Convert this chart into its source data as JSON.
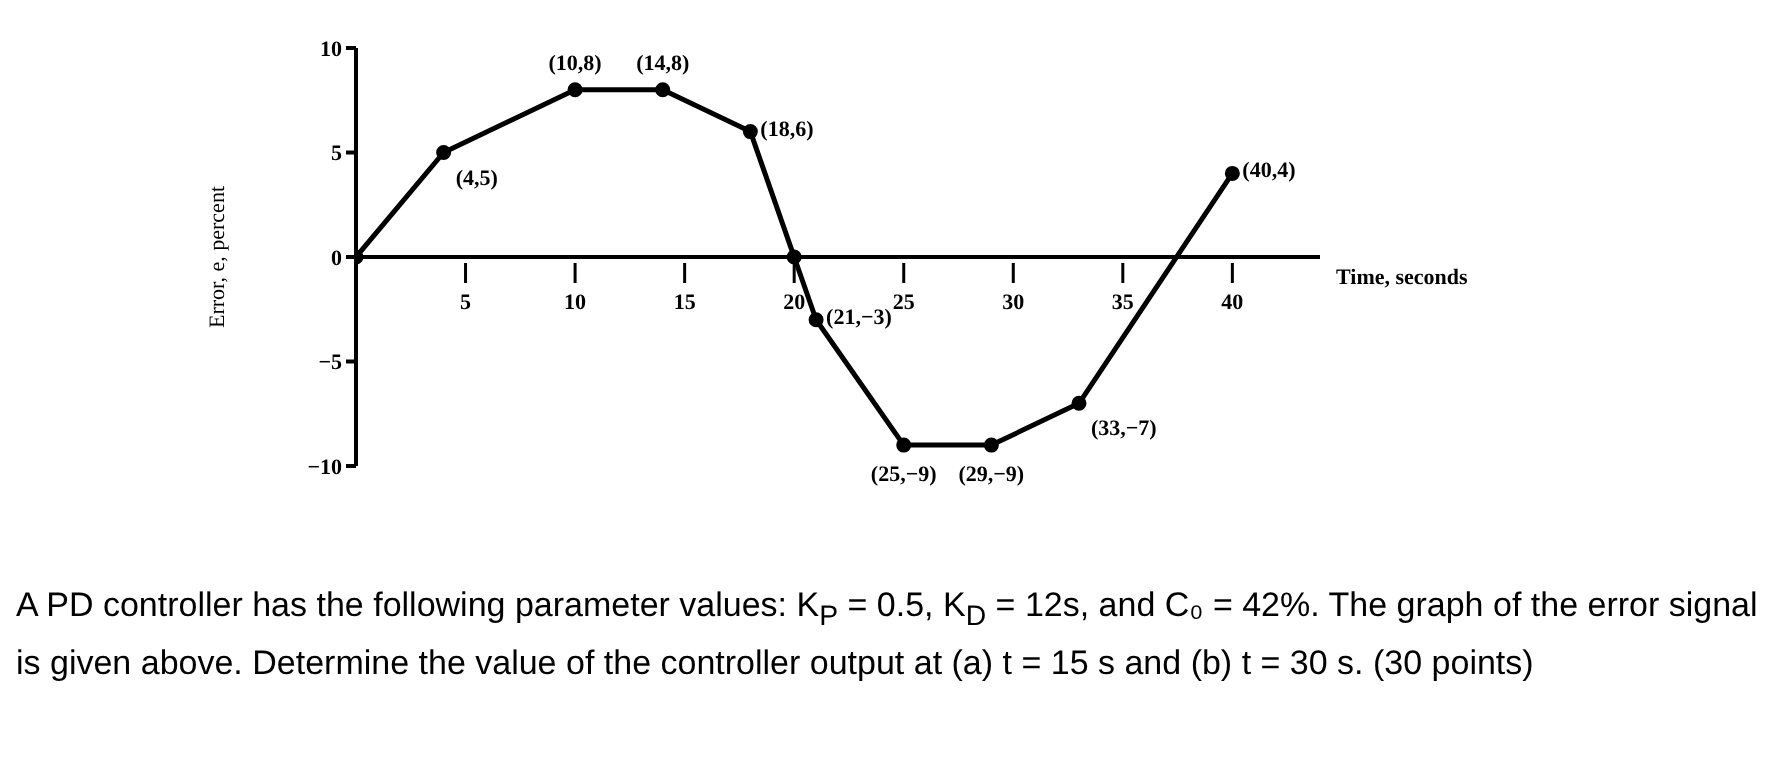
{
  "chart_data": {
    "type": "line",
    "ylabel": "Error, e, percent",
    "xlabel": "Time, seconds",
    "x": [
      0,
      4,
      10,
      14,
      18,
      20,
      21,
      25,
      29,
      33,
      40
    ],
    "series": [
      {
        "color": "#000000",
        "values": [
          0,
          5,
          8,
          8,
          6,
          0,
          -3,
          -9,
          -9,
          -7,
          4
        ]
      }
    ],
    "xlim": [
      0,
      44
    ],
    "xticks": [
      5,
      10,
      15,
      20,
      25,
      30,
      35,
      40
    ],
    "ylim": [
      -10,
      10
    ],
    "yticks": [
      -10,
      -5,
      0,
      5,
      10
    ],
    "marker": "circle",
    "line_style": "solid",
    "grid": false,
    "legend": false,
    "annotations": [
      {
        "text": "(4,5)",
        "x": 4,
        "y": 5
      },
      {
        "text": "(10,8)",
        "x": 10,
        "y": 8
      },
      {
        "text": "(14,8)",
        "x": 14,
        "y": 8
      },
      {
        "text": "(18,6)",
        "x": 18,
        "y": 6
      },
      {
        "text": "(21,−3)",
        "x": 21,
        "y": -3
      },
      {
        "text": "(25,−9)",
        "x": 25,
        "y": -9
      },
      {
        "text": "(29,−9)",
        "x": 29,
        "y": -9
      },
      {
        "text": "(33,−7)",
        "x": 33,
        "y": -7
      },
      {
        "text": "(40,4)",
        "x": 40,
        "y": 4
      },
      "A PD controller has the following parameter values: K$_{P}$ = 0.5, K$_{D}$ = 12s, and C₀ = 42%. The graph of the error signal is given above. Determine the value of the controller output at (a) t = 15 s and (b) t = 30 s. (30 points)"
    ]
  }
}
